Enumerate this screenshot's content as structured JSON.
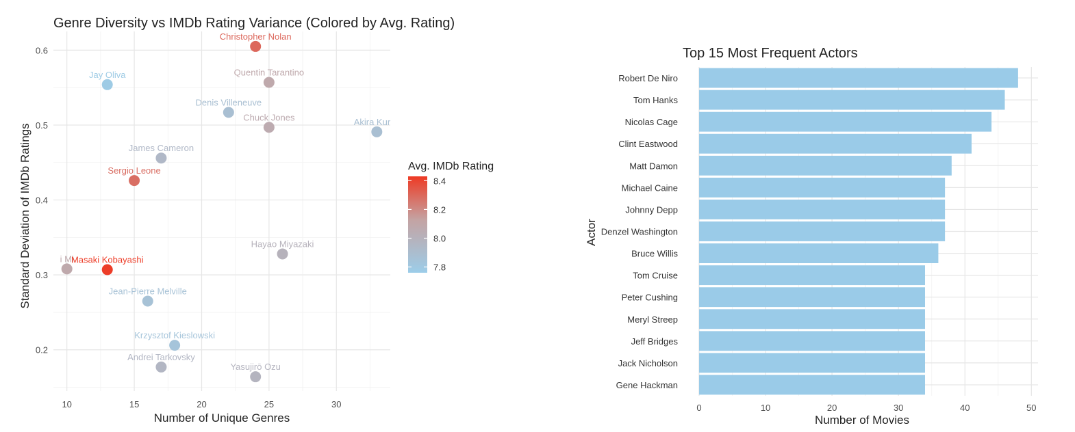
{
  "chart_data": [
    {
      "type": "scatter",
      "title": "Genre Diversity vs IMDb Rating Variance (Colored by Avg. Rating)",
      "xlabel": "Number of Unique Genres",
      "ylabel": "Standard Deviation of IMDb Ratings",
      "xlim": [
        9,
        34
      ],
      "ylim": [
        0.145,
        0.625
      ],
      "xticks": [
        10,
        15,
        20,
        25,
        30
      ],
      "yticks": [
        0.2,
        0.3,
        0.4,
        0.5,
        0.6
      ],
      "xtick_labels": [
        "10",
        "15",
        "20",
        "25",
        "30"
      ],
      "ytick_labels": [
        "0.2",
        "0.3",
        "0.4",
        "0.5",
        "0.6"
      ],
      "grid": true,
      "color_scale": {
        "title": "Avg. IMDb Rating",
        "low_color": "#9ccde9",
        "mid_color": "#c4a3a3",
        "high_color": "#ee3a24",
        "min": 7.76,
        "max": 8.43,
        "ticks": [
          "7.8",
          "8.0",
          "8.2",
          "8.4"
        ],
        "tick_values": [
          7.8,
          8.0,
          8.2,
          8.4
        ],
        "placement": "right"
      },
      "points": [
        {
          "label": "Christopher Nolan",
          "x": 24,
          "y": 0.605,
          "rating": 8.3
        },
        {
          "label": "Quentin Tarantino",
          "x": 25,
          "y": 0.557,
          "rating": 8.08
        },
        {
          "label": "Jay Oliva",
          "x": 13,
          "y": 0.554,
          "rating": 7.78
        },
        {
          "label": "Denis Villeneuve",
          "x": 22,
          "y": 0.517,
          "rating": 7.88
        },
        {
          "label": "Chuck Jones",
          "x": 25,
          "y": 0.497,
          "rating": 8.06
        },
        {
          "label": "Akira Kuros",
          "x": 33,
          "y": 0.491,
          "rating": 7.88
        },
        {
          "label": "James Cameron",
          "x": 17,
          "y": 0.456,
          "rating": 7.94
        },
        {
          "label": "Sergio Leone",
          "x": 15,
          "y": 0.426,
          "rating": 8.28
        },
        {
          "label": "Hayao Miyazaki",
          "x": 26,
          "y": 0.328,
          "rating": 8.0
        },
        {
          "label": "i Mi",
          "x": 10,
          "y": 0.308,
          "rating": 8.08
        },
        {
          "label": "Masaki Kobayashi",
          "x": 13,
          "y": 0.307,
          "rating": 8.42
        },
        {
          "label": "Jean-Pierre Melville",
          "x": 16,
          "y": 0.265,
          "rating": 7.86
        },
        {
          "label": "Krzysztof Kieslowski",
          "x": 18,
          "y": 0.206,
          "rating": 7.84
        },
        {
          "label": "Andrei Tarkovsky",
          "x": 17,
          "y": 0.177,
          "rating": 7.96
        },
        {
          "label": "Yasujirō Ozu",
          "x": 24,
          "y": 0.164,
          "rating": 7.98
        }
      ]
    },
    {
      "type": "bar",
      "orientation": "horizontal",
      "title": "Top 15 Most Frequent Actors",
      "xlabel": "Number of Movies",
      "ylabel": "Actor",
      "xlim": [
        0,
        51
      ],
      "xticks": [
        0,
        10,
        20,
        30,
        40,
        50
      ],
      "xtick_labels": [
        "0",
        "10",
        "20",
        "30",
        "40",
        "50"
      ],
      "grid": true,
      "bar_color": "#9acbe8",
      "categories": [
        "Robert De Niro",
        "Tom Hanks",
        "Nicolas Cage",
        "Clint Eastwood",
        "Matt Damon",
        "Michael Caine",
        "Johnny Depp",
        "Denzel Washington",
        "Bruce Willis",
        "Tom Cruise",
        "Peter Cushing",
        "Meryl Streep",
        "Jeff Bridges",
        "Jack Nicholson",
        "Gene Hackman"
      ],
      "values": [
        48,
        46,
        44,
        41,
        38,
        37,
        37,
        37,
        36,
        34,
        34,
        34,
        34,
        34,
        34
      ]
    }
  ]
}
